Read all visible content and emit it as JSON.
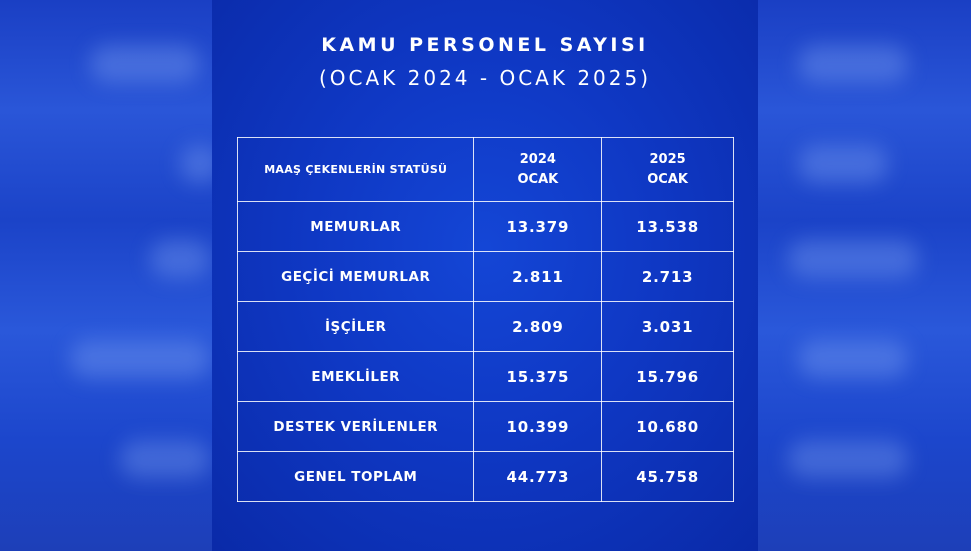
{
  "title": "KAMU PERSONEL SAYISI",
  "subtitle": "(OCAK 2024 - OCAK 2025)",
  "table": {
    "headers": {
      "status": "MAAŞ ÇEKENLERİN STATÜSÜ",
      "col1_year": "2024",
      "col1_month": "OCAK",
      "col2_year": "2025",
      "col2_month": "OCAK"
    },
    "rows": [
      {
        "label": "MEMURLAR",
        "v2024": "13.379",
        "v2025": "13.538"
      },
      {
        "label": "GEÇİCİ MEMURLAR",
        "v2024": "2.811",
        "v2025": "2.713"
      },
      {
        "label": "İŞÇİLER",
        "v2024": "2.809",
        "v2025": "3.031"
      },
      {
        "label": "EMEKLİLER",
        "v2024": "15.375",
        "v2025": "15.796"
      },
      {
        "label": "DESTEK VERİLENLER",
        "v2024": "10.399",
        "v2025": "10.680"
      },
      {
        "label": "GENEL TOPLAM",
        "v2024": "44.773",
        "v2025": "45.758"
      }
    ]
  },
  "colors": {
    "background": "#0d2fb8",
    "text": "#ffffff",
    "border": "#ffffff"
  }
}
